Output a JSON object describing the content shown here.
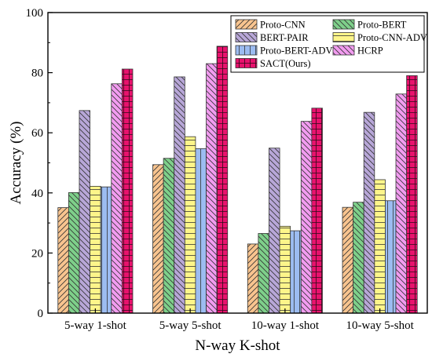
{
  "chart_data": {
    "type": "bar",
    "title": "",
    "xlabel": "N-way K-shot",
    "ylabel": "Accuracy (%)",
    "ylim": [
      0,
      100
    ],
    "yticks": [
      0,
      20,
      40,
      60,
      80,
      100
    ],
    "grid": false,
    "legend_position": "top-right",
    "categories": [
      "5-way 1-shot",
      "5-way 5-shot",
      "10-way 1-shot",
      "10-way 5-shot"
    ],
    "series": [
      {
        "name": "Proto-CNN",
        "color": "#f8c48f",
        "pattern": "diag-forward",
        "values": [
          35.1,
          49.4,
          23.0,
          35.2
        ]
      },
      {
        "name": "Proto-BERT",
        "color": "#7ed08a",
        "pattern": "diag-back",
        "values": [
          40.1,
          51.5,
          26.5,
          36.9
        ]
      },
      {
        "name": "BERT-PAIR",
        "color": "#b8a7d8",
        "pattern": "diag-back",
        "values": [
          67.4,
          78.6,
          54.9,
          66.8
        ]
      },
      {
        "name": "Proto-CNN-ADV",
        "color": "#fdf58a",
        "pattern": "horizontal",
        "values": [
          42.2,
          58.7,
          28.9,
          44.4
        ]
      },
      {
        "name": "Proto-BERT-ADV",
        "color": "#9cbcf1",
        "pattern": "vertical",
        "values": [
          42.0,
          54.7,
          27.4,
          37.4
        ]
      },
      {
        "name": "HCRP",
        "color": "#f29cf0",
        "pattern": "diag-back",
        "values": [
          76.3,
          83.0,
          63.8,
          72.9
        ]
      },
      {
        "name": "SACT(Ours)",
        "color": "#e8126d",
        "pattern": "grid",
        "values": [
          81.2,
          88.8,
          68.2,
          79.0
        ]
      }
    ]
  }
}
